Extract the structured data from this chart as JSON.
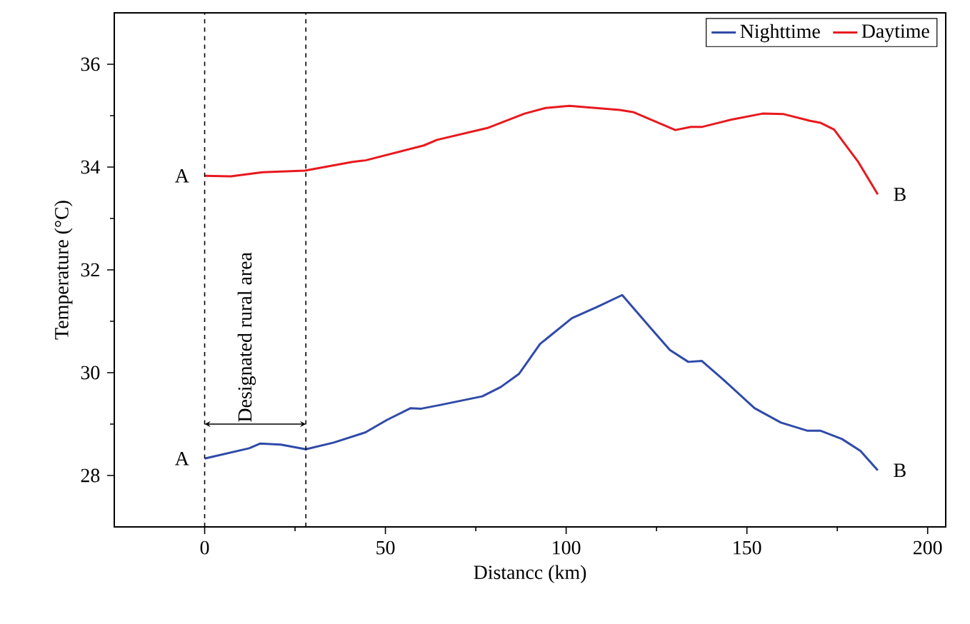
{
  "chart_data": {
    "type": "line",
    "xlabel": "Distancc (km)",
    "ylabel": "Temperature (°C)",
    "xlim": [
      -25,
      205
    ],
    "ylim": [
      27,
      37
    ],
    "xticks": [
      0,
      50,
      100,
      150,
      200
    ],
    "yticks": [
      28,
      30,
      32,
      34,
      36
    ],
    "grid": false,
    "legend": "top right",
    "marker": "none",
    "line_style": "solid",
    "series": [
      {
        "name": "Nighttime",
        "color": "#2f4aa8",
        "x": [
          0,
          12.3,
          15.3,
          21.1,
          28,
          35.7,
          44.5,
          50.4,
          57,
          59.9,
          65,
          76.8,
          81.9,
          87,
          92.8,
          101.6,
          108.9,
          115.5,
          123.6,
          128.7,
          133.8,
          137.5,
          143.4,
          152.1,
          159.4,
          166.8,
          170.4,
          176.3,
          181.4,
          186.2
        ],
        "values": [
          28.33,
          28.53,
          28.62,
          28.6,
          28.51,
          28.64,
          28.84,
          29.08,
          29.31,
          29.3,
          29.37,
          29.54,
          29.72,
          29.98,
          30.56,
          31.06,
          31.29,
          31.51,
          30.85,
          30.44,
          30.21,
          30.23,
          29.87,
          29.31,
          29.03,
          28.87,
          28.87,
          28.71,
          28.48,
          28.1
        ]
      },
      {
        "name": "Daytime",
        "color": "#e8191e",
        "x": [
          0,
          7.2,
          16,
          27.7,
          40.9,
          44.5,
          60.6,
          64.3,
          78.2,
          88.5,
          94.3,
          100.9,
          114.8,
          118.5,
          130.2,
          134.5,
          137.5,
          145.5,
          154.3,
          160.2,
          167.5,
          170.4,
          174.1,
          180.7,
          186.2
        ],
        "values": [
          33.83,
          33.82,
          33.9,
          33.93,
          34.1,
          34.13,
          34.42,
          34.53,
          34.76,
          35.04,
          35.15,
          35.19,
          35.11,
          35.07,
          34.72,
          34.78,
          34.78,
          34.92,
          35.04,
          35.03,
          34.9,
          34.86,
          34.73,
          34.11,
          33.47
        ]
      }
    ],
    "ref_lines": [
      {
        "axis": "x",
        "value": 0,
        "color": "#000000",
        "line_style": "dashed"
      },
      {
        "axis": "x",
        "value": 28,
        "color": "#000000",
        "line_style": "dashed"
      }
    ],
    "annotations": [
      "Designated rural area",
      "A",
      "B",
      "A",
      "B"
    ]
  }
}
